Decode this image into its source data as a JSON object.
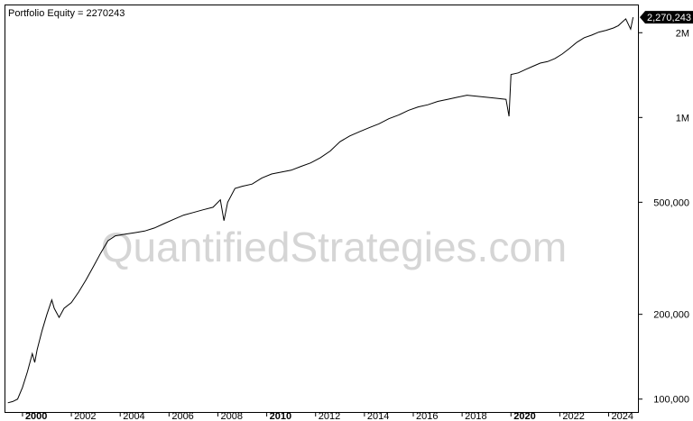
{
  "legend": "Portfolio Equity = 2270243",
  "watermark": "QuantifiedStrategies.com",
  "colors": {
    "line": "#000000",
    "frame": "#000000",
    "badge": "#000000"
  },
  "chart_data": {
    "type": "line",
    "title": "",
    "xlabel": "",
    "ylabel": "",
    "yscale": "log",
    "ylim": [
      90000,
      2500000
    ],
    "xlim": [
      1999.3,
      2025.2
    ],
    "grid": false,
    "last_value_label": "2,270,243",
    "yticks": [
      {
        "value": 100000,
        "label": "100,000"
      },
      {
        "value": 200000,
        "label": "200,000"
      },
      {
        "value": 500000,
        "label": "500,000"
      },
      {
        "value": 1000000,
        "label": "1M"
      },
      {
        "value": 2000000,
        "label": "2M"
      }
    ],
    "xticks": [
      {
        "value": 2000,
        "label": "2000",
        "major": true
      },
      {
        "value": 2002,
        "label": "2002",
        "major": false
      },
      {
        "value": 2004,
        "label": "2004",
        "major": false
      },
      {
        "value": 2006,
        "label": "2006",
        "major": false
      },
      {
        "value": 2008,
        "label": "2008",
        "major": false
      },
      {
        "value": 2010,
        "label": "2010",
        "major": true
      },
      {
        "value": 2012,
        "label": "2012",
        "major": false
      },
      {
        "value": 2014,
        "label": "2014",
        "major": false
      },
      {
        "value": 2016,
        "label": "2016",
        "major": false
      },
      {
        "value": 2018,
        "label": "2018",
        "major": false
      },
      {
        "value": 2020,
        "label": "2020",
        "major": true
      },
      {
        "value": 2022,
        "label": "2022",
        "major": false
      },
      {
        "value": 2024,
        "label": "2024",
        "major": false
      }
    ],
    "series": [
      {
        "x": [
          1999.4,
          1999.6,
          1999.8,
          2000.0,
          2000.2,
          2000.4,
          2000.5,
          2000.6,
          2000.8,
          2001.0,
          2001.2,
          2001.3,
          2001.5,
          2001.7,
          2002.0,
          2002.3,
          2002.6,
          2002.9,
          2003.2,
          2003.5,
          2003.8,
          2004.2,
          2004.6,
          2005.0,
          2005.4,
          2005.8,
          2006.2,
          2006.6,
          2007.0,
          2007.4,
          2007.8,
          2008.1,
          2008.25,
          2008.4,
          2008.7,
          2009.0,
          2009.4,
          2009.8,
          2010.2,
          2010.6,
          2011.0,
          2011.4,
          2011.8,
          2012.2,
          2012.6,
          2013.0,
          2013.4,
          2013.8,
          2014.2,
          2014.6,
          2015.0,
          2015.4,
          2015.8,
          2016.2,
          2016.6,
          2017.0,
          2017.4,
          2017.8,
          2018.2,
          2018.6,
          2019.0,
          2019.4,
          2019.8,
          2019.92,
          2020.0,
          2020.3,
          2020.6,
          2020.9,
          2021.2,
          2021.5,
          2021.8,
          2022.1,
          2022.4,
          2022.7,
          2023.0,
          2023.3,
          2023.6,
          2023.9,
          2024.2,
          2024.4,
          2024.55,
          2024.7,
          2024.9,
          2025.0
        ],
        "y": [
          97000,
          98000,
          100000,
          110000,
          125000,
          145000,
          135000,
          150000,
          175000,
          200000,
          225000,
          210000,
          195000,
          210000,
          220000,
          240000,
          265000,
          295000,
          330000,
          365000,
          380000,
          385000,
          390000,
          395000,
          405000,
          420000,
          435000,
          450000,
          460000,
          470000,
          480000,
          510000,
          430000,
          500000,
          560000,
          570000,
          580000,
          610000,
          630000,
          640000,
          650000,
          670000,
          690000,
          720000,
          760000,
          820000,
          860000,
          890000,
          920000,
          950000,
          990000,
          1020000,
          1060000,
          1090000,
          1110000,
          1140000,
          1160000,
          1180000,
          1200000,
          1190000,
          1180000,
          1170000,
          1160000,
          1010000,
          1420000,
          1440000,
          1480000,
          1520000,
          1560000,
          1580000,
          1620000,
          1680000,
          1760000,
          1850000,
          1920000,
          1960000,
          2010000,
          2040000,
          2080000,
          2120000,
          2180000,
          2240000,
          2060000,
          2270243
        ]
      }
    ]
  }
}
